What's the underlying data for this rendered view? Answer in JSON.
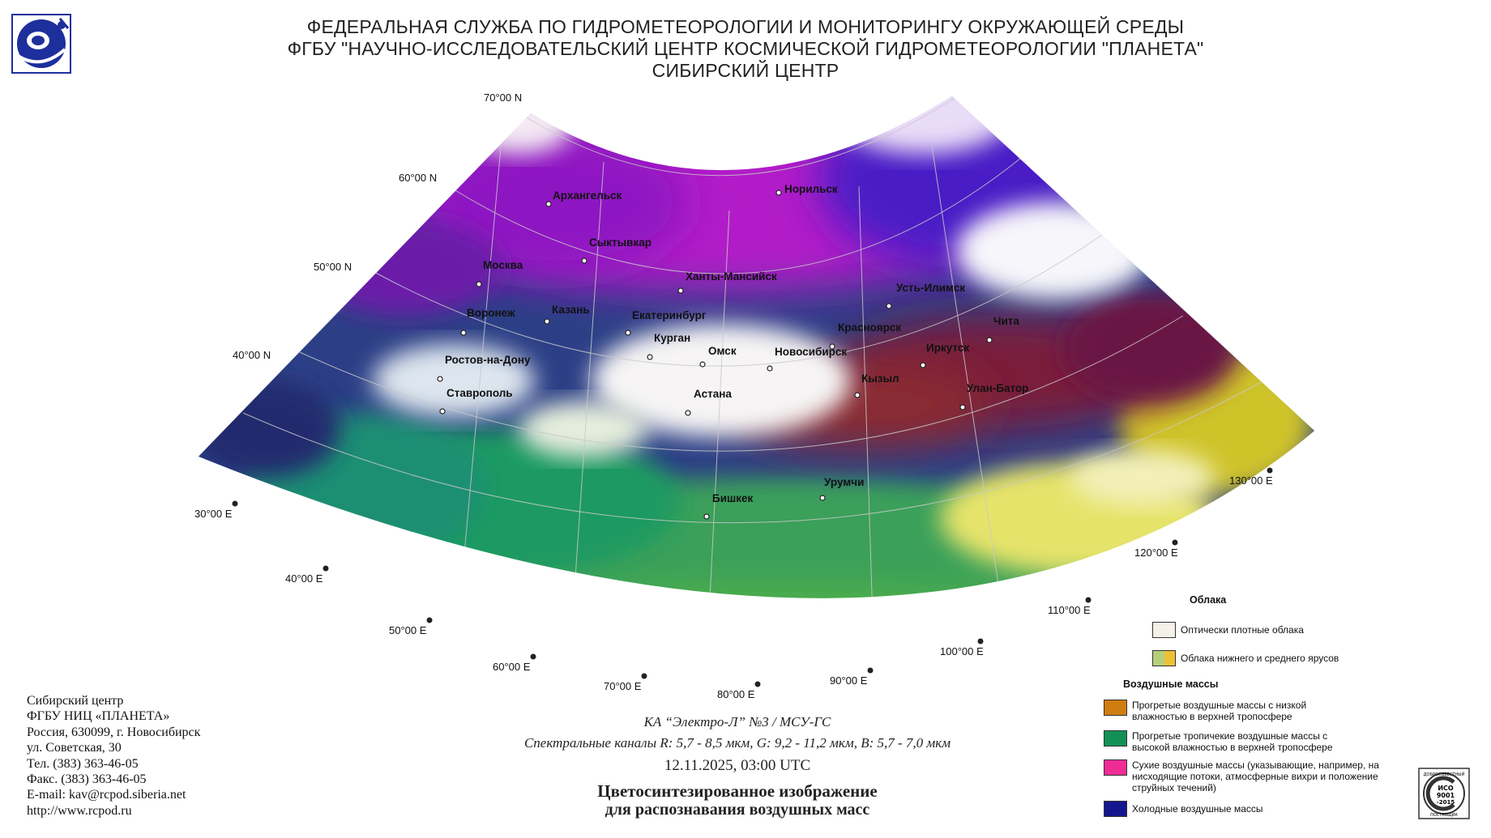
{
  "header": {
    "line1": "ФЕДЕРАЛЬНАЯ СЛУЖБА ПО ГИДРОМЕТЕОРОЛОГИИ И МОНИТОРИНГУ ОКРУЖАЮЩЕЙ СРЕДЫ",
    "line2": "ФГБУ \"НАУЧНО-ИССЛЕДОВАТЕЛЬСКИЙ ЦЕНТР КОСМИЧЕСКОЙ ГИДРОМЕТЕОРОЛОГИИ \"ПЛАНЕТА\"",
    "line3": "СИБИРСКИЙ ЦЕНТР"
  },
  "map": {
    "lat_labels": [
      "70°00 N",
      "60°00 N",
      "50°00 N",
      "40°00 N"
    ],
    "lon_labels": [
      "30°00 E",
      "40°00 E",
      "50°00 E",
      "60°00 E",
      "70°00 E",
      "80°00 E",
      "90°00 E",
      "100°00 E",
      "110°00 E",
      "120°00 E",
      "130°00 E"
    ],
    "cities": [
      "Архангельск",
      "Норильск",
      "Сыктывкар",
      "Москва",
      "Ханты-Мансийск",
      "Усть-Илимск",
      "Казань",
      "Воронеж",
      "Екатеринбург",
      "Красноярск",
      "Чита",
      "Курган",
      "Омск",
      "Новосибирск",
      "Иркутск",
      "Ростов-на-Дону",
      "Кызыл",
      "Улан-Батор",
      "Ставрополь",
      "Астана",
      "Урумчи",
      "Бишкек"
    ]
  },
  "contact": {
    "line1": "Сибирский центр",
    "line2": "ФГБУ НИЦ «ПЛАНЕТА»",
    "line3": "Россия, 630099, г. Новосибирск",
    "line4": "ул. Советская, 30",
    "line5": "Тел. (383) 363-46-05",
    "line6": "Факс. (383) 363-46-05",
    "line7": "E-mail: kav@rcpod.siberia.net",
    "line8": "http://www.rcpod.ru"
  },
  "caption": {
    "satellite": "КА “Электро-Л” №3 / МСУ-ГС",
    "channels": "Спектральные каналы R: 5,7 - 8,5 мкм, G: 9,2 - 11,2 мкм, B: 5,7 - 7,0 мкм",
    "datetime": "12.11.2025, 03:00 UTC",
    "title": "Цветосинтезированное изображение",
    "subtitle": "для распознавания воздушных масс"
  },
  "legend": {
    "clouds_title": "Облака",
    "dense_clouds": "Оптически плотные облака",
    "low_mid_clouds": "Облака нижнего и среднего ярусов",
    "air_title": "Воздушные массы",
    "warm_dry": "Прогретые воздушные массы с низкой влажностью в верхней тропосфере",
    "warm_tropical": "Прогретые тропичекие воздушные массы с высокой влажностью в верхней тропосфере",
    "dry": "Сухие воздушные массы (указывающие, например, на нисходящие потоки, атмосферные вихри и положение струйных течений)",
    "cold": "Холодные воздушные массы",
    "colors": {
      "dense_clouds": "#f4f1e8",
      "low_mid_left": "#b5cf78",
      "low_mid_right": "#efbf35",
      "warm_dry": "#d07d10",
      "warm_tropical": "#139155",
      "dry": "#ee2c95",
      "cold": "#15168e"
    }
  },
  "badge": {
    "line1": "ИСО",
    "line2": "9001",
    "line3": "-2015",
    "arc_top": "ДОБРОСОВЕСТНЫЙ",
    "arc_bottom": "ПОСТАВЩИК"
  }
}
